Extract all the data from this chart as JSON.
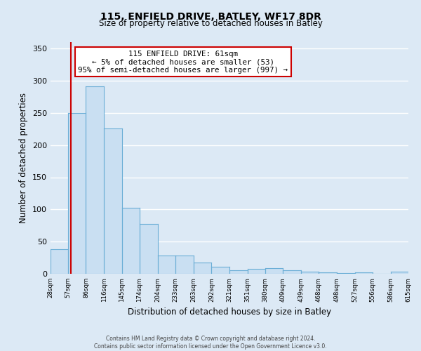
{
  "title": "115, ENFIELD DRIVE, BATLEY, WF17 8DR",
  "subtitle": "Size of property relative to detached houses in Batley",
  "xlabel": "Distribution of detached houses by size in Batley",
  "ylabel": "Number of detached properties",
  "bin_edges": [
    28,
    57,
    86,
    116,
    145,
    174,
    204,
    233,
    263,
    292,
    321,
    351,
    380,
    409,
    439,
    468,
    498,
    527,
    556,
    586,
    615
  ],
  "bar_heights": [
    38,
    250,
    291,
    226,
    103,
    77,
    28,
    28,
    17,
    11,
    5,
    8,
    9,
    5,
    3,
    2,
    1,
    2,
    0,
    3
  ],
  "bar_color": "#c9dff2",
  "bar_edge_color": "#6baed6",
  "x_tick_labels": [
    "28sqm",
    "57sqm",
    "86sqm",
    "116sqm",
    "145sqm",
    "174sqm",
    "204sqm",
    "233sqm",
    "263sqm",
    "292sqm",
    "321sqm",
    "351sqm",
    "380sqm",
    "409sqm",
    "439sqm",
    "468sqm",
    "498sqm",
    "527sqm",
    "556sqm",
    "586sqm",
    "615sqm"
  ],
  "ylim": [
    0,
    360
  ],
  "yticks": [
    0,
    50,
    100,
    150,
    200,
    250,
    300,
    350
  ],
  "property_line_x": 61,
  "property_line_color": "#cc0000",
  "annotation_title": "115 ENFIELD DRIVE: 61sqm",
  "annotation_line1": "← 5% of detached houses are smaller (53)",
  "annotation_line2": "95% of semi-detached houses are larger (997) →",
  "annotation_box_color": "#ffffff",
  "annotation_box_edge": "#cc0000",
  "footer_line1": "Contains HM Land Registry data © Crown copyright and database right 2024.",
  "footer_line2": "Contains public sector information licensed under the Open Government Licence v3.0.",
  "background_color": "#dce9f5",
  "plot_bg_color": "#dce9f5",
  "grid_color": "#ffffff"
}
